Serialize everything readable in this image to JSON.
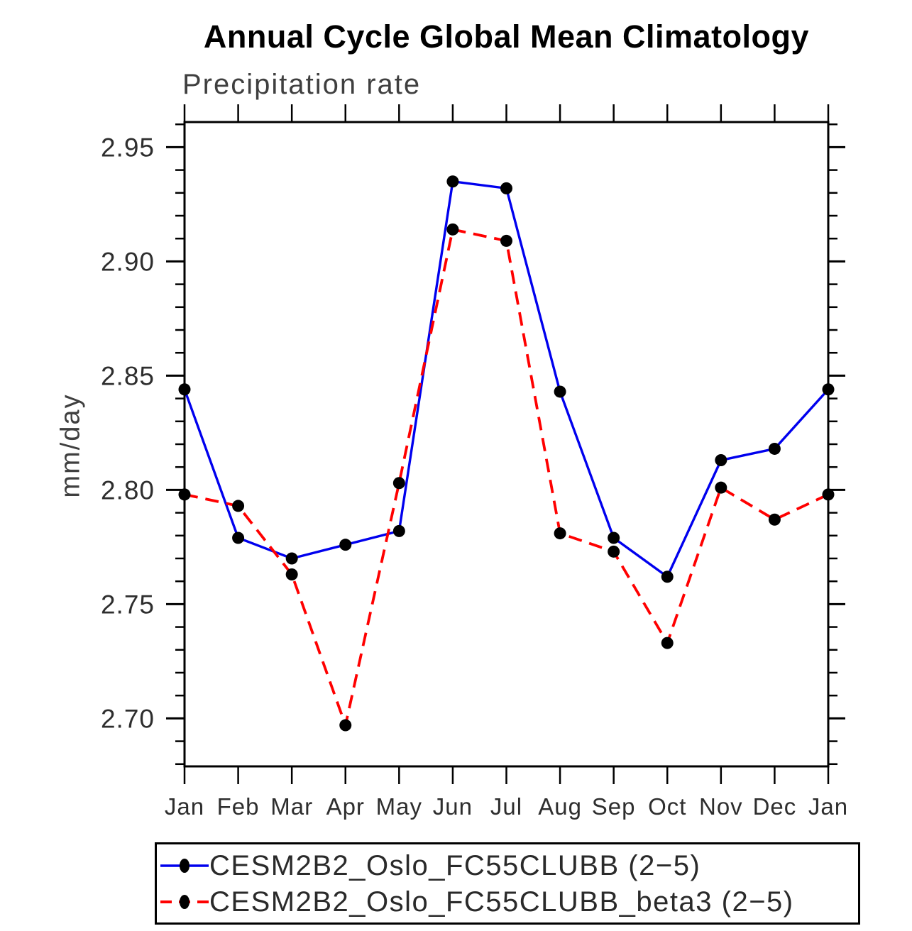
{
  "chart_data": {
    "type": "line",
    "title": "Annual Cycle Global Mean Climatology",
    "subtitle": "Precipitation rate",
    "ylabel": "mm/day",
    "xlabel": "",
    "categories": [
      "Jan",
      "Feb",
      "Mar",
      "Apr",
      "May",
      "Jun",
      "Jul",
      "Aug",
      "Sep",
      "Oct",
      "Nov",
      "Dec",
      "Jan"
    ],
    "series": [
      {
        "name": "CESM2B2_Oslo_FC55CLUBB (2−5)",
        "color": "#0000ee",
        "line_style": "solid",
        "marker": "filled-circle",
        "marker_color": "#000000",
        "values": [
          2.844,
          2.779,
          2.77,
          2.776,
          2.782,
          2.935,
          2.932,
          2.843,
          2.779,
          2.762,
          2.813,
          2.818,
          2.844
        ]
      },
      {
        "name": "CESM2B2_Oslo_FC55CLUBB_beta3 (2−5)",
        "color": "#ff0000",
        "line_style": "dashed",
        "marker": "filled-circle",
        "marker_color": "#000000",
        "values": [
          2.798,
          2.793,
          2.763,
          2.697,
          2.803,
          2.914,
          2.909,
          2.781,
          2.773,
          2.733,
          2.801,
          2.787,
          2.798
        ]
      }
    ],
    "ylim": [
      2.679,
      2.961
    ],
    "yticks": [
      "2.70",
      "2.75",
      "2.80",
      "2.85",
      "2.90",
      "2.95"
    ],
    "minor_tick_interval": 0.01,
    "grid": false,
    "tick_style": "outward-all-four-sides",
    "legend_position": "bottom",
    "frame_color": "#000000"
  }
}
